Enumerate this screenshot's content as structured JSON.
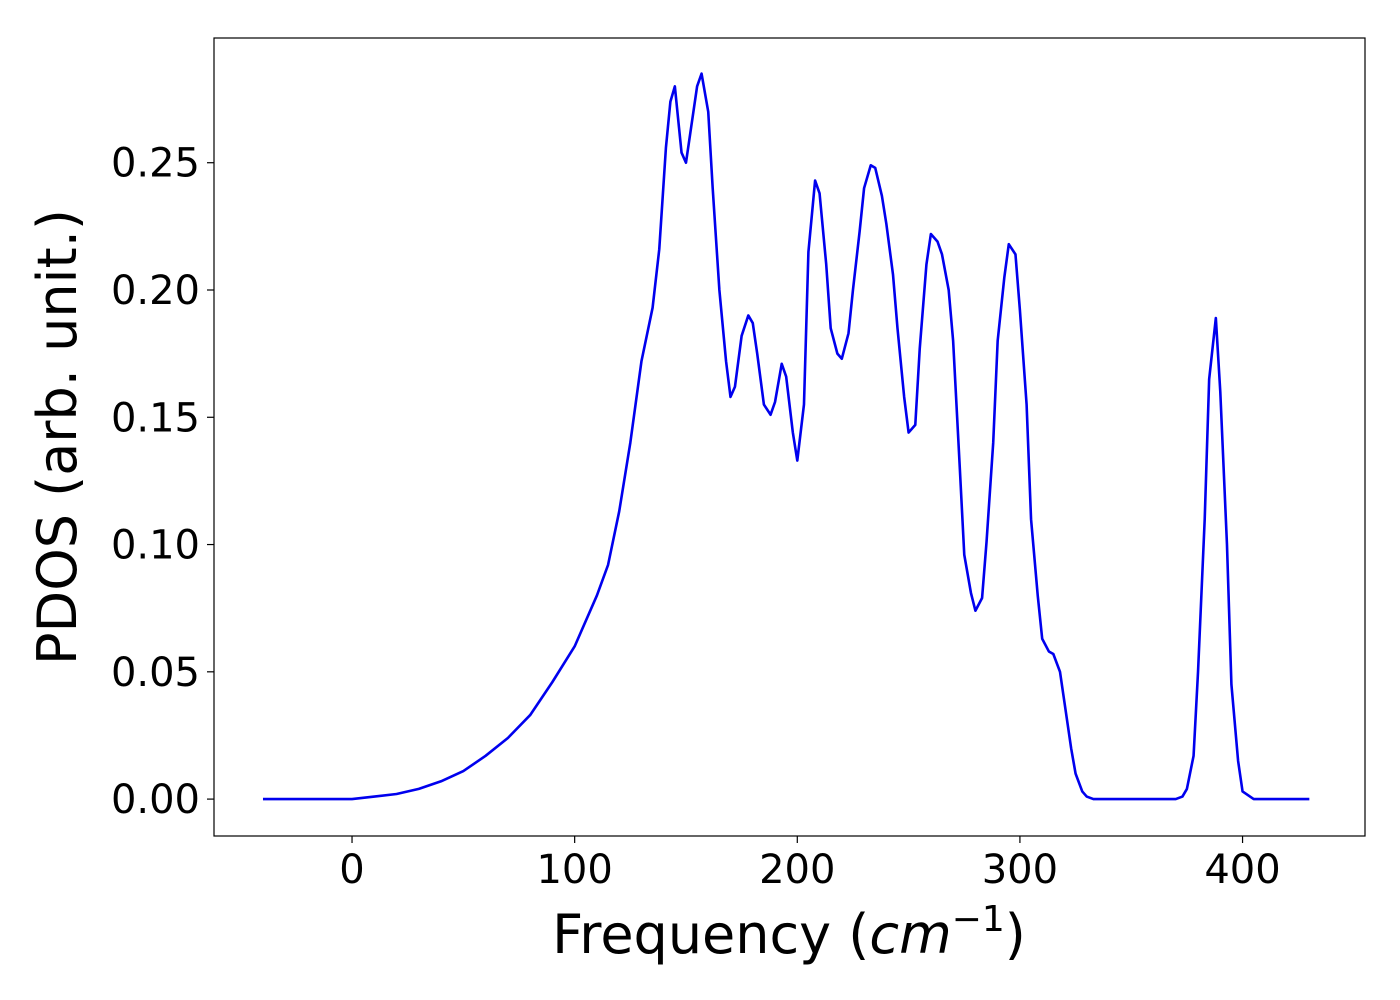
{
  "chart_data": {
    "type": "line",
    "title": "",
    "xlabel_text": "Frequency (",
    "xlabel_math_base": "cm",
    "xlabel_math_sup": "−1",
    "xlabel_close": ")",
    "ylabel": "PDOS (arb. unit.)",
    "xlim": [
      -62,
      455
    ],
    "ylim": [
      -0.0145,
      0.299
    ],
    "xticks": [
      0,
      100,
      200,
      300,
      400
    ],
    "xtick_labels": [
      "0",
      "100",
      "200",
      "300",
      "400"
    ],
    "yticks": [
      0.0,
      0.05,
      0.1,
      0.15,
      0.2,
      0.25
    ],
    "ytick_labels": [
      "0.00",
      "0.05",
      "0.10",
      "0.15",
      "0.20",
      "0.25"
    ],
    "grid": false,
    "series": [
      {
        "color": "#0000ee",
        "x": [
          -40,
          0,
          10,
          20,
          30,
          40,
          50,
          60,
          70,
          80,
          90,
          100,
          110,
          115,
          120,
          125,
          130,
          135,
          138,
          141,
          143,
          145,
          148,
          150,
          152,
          155,
          157,
          160,
          162,
          165,
          168,
          170,
          172,
          175,
          178,
          180,
          182,
          185,
          188,
          190,
          193,
          195,
          198,
          200,
          203,
          205,
          208,
          210,
          213,
          215,
          218,
          220,
          223,
          225,
          228,
          230,
          233,
          235,
          238,
          240,
          243,
          245,
          248,
          250,
          253,
          255,
          258,
          260,
          263,
          265,
          268,
          270,
          273,
          275,
          278,
          280,
          283,
          285,
          288,
          290,
          293,
          295,
          298,
          300,
          303,
          305,
          308,
          310,
          313,
          315,
          318,
          320,
          323,
          325,
          328,
          330,
          333,
          335,
          340,
          370,
          373,
          375,
          378,
          380,
          383,
          385,
          388,
          390,
          393,
          395,
          398,
          400,
          405,
          430
        ],
        "y": [
          0.0,
          0.0,
          0.001,
          0.002,
          0.004,
          0.007,
          0.011,
          0.017,
          0.024,
          0.033,
          0.046,
          0.06,
          0.08,
          0.092,
          0.113,
          0.14,
          0.172,
          0.193,
          0.216,
          0.256,
          0.274,
          0.28,
          0.254,
          0.25,
          0.262,
          0.28,
          0.285,
          0.27,
          0.24,
          0.2,
          0.172,
          0.158,
          0.162,
          0.182,
          0.19,
          0.187,
          0.175,
          0.155,
          0.151,
          0.156,
          0.171,
          0.166,
          0.144,
          0.133,
          0.155,
          0.215,
          0.243,
          0.238,
          0.21,
          0.185,
          0.175,
          0.173,
          0.183,
          0.2,
          0.223,
          0.24,
          0.249,
          0.248,
          0.237,
          0.226,
          0.206,
          0.185,
          0.158,
          0.144,
          0.147,
          0.177,
          0.21,
          0.222,
          0.219,
          0.214,
          0.2,
          0.18,
          0.13,
          0.096,
          0.081,
          0.074,
          0.079,
          0.101,
          0.14,
          0.18,
          0.205,
          0.218,
          0.214,
          0.192,
          0.155,
          0.11,
          0.08,
          0.063,
          0.058,
          0.057,
          0.05,
          0.038,
          0.02,
          0.01,
          0.003,
          0.001,
          0.0,
          0.0,
          0.0,
          0.0,
          0.001,
          0.004,
          0.017,
          0.05,
          0.11,
          0.165,
          0.189,
          0.16,
          0.1,
          0.045,
          0.015,
          0.003,
          0.0,
          0.0
        ]
      }
    ]
  }
}
